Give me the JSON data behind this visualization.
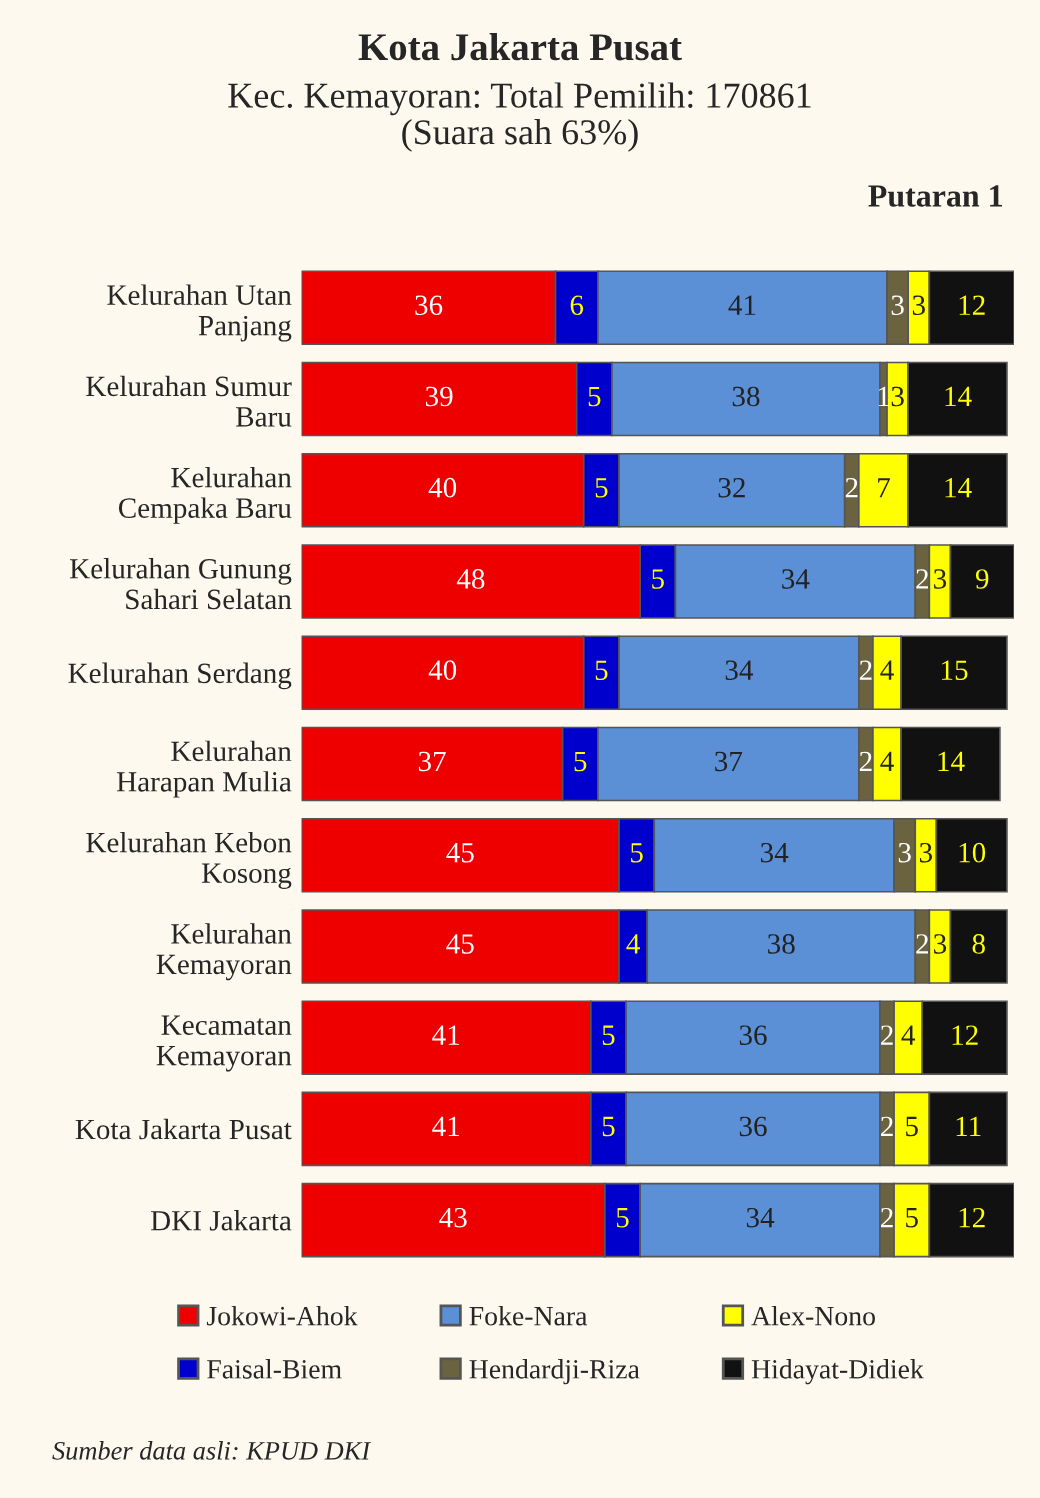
{
  "chart_data": {
    "type": "bar",
    "orientation": "horizontal",
    "stacked": true,
    "title": "Kota Jakarta Pusat",
    "subtitle": "Kec. Kemayoran: Total Pemilih: 170861\n(Suara sah 63%)",
    "annotations": [
      "Putaran 1",
      "Sumber data asli: KPUD DKI"
    ],
    "categories": [
      "Kelurahan Utan\nPanjang",
      "Kelurahan Sumur\nBaru",
      "Kelurahan\nCempaka Baru",
      "Kelurahan Gunung\nSahari Selatan",
      "Kelurahan Serdang",
      "Kelurahan\nHarapan Mulia",
      "Kelurahan Kebon\nKosong",
      "Kelurahan\nKemayoran",
      "Kecamatan\nKemayoran",
      "Kota Jakarta Pusat",
      "DKI Jakarta"
    ],
    "series": [
      {
        "name": "Jokowi-Ahok",
        "color": "#ee0000",
        "values": [
          36,
          39,
          40,
          48,
          40,
          37,
          45,
          45,
          41,
          41,
          43
        ]
      },
      {
        "name": "Faisal-Biem",
        "color": "#0000cc",
        "values": [
          6,
          5,
          5,
          5,
          5,
          5,
          5,
          4,
          5,
          5,
          5
        ]
      },
      {
        "name": "Foke-Nara",
        "color": "#5b8fd6",
        "values": [
          41,
          38,
          32,
          34,
          34,
          37,
          34,
          38,
          36,
          36,
          34
        ]
      },
      {
        "name": "Hendardji-Riza",
        "color": "#6b6340",
        "values": [
          3,
          1,
          2,
          2,
          2,
          2,
          3,
          2,
          2,
          2,
          2
        ]
      },
      {
        "name": "Alex-Nono",
        "color": "#ffff00",
        "values": [
          3,
          3,
          7,
          3,
          4,
          4,
          3,
          3,
          4,
          5,
          5
        ]
      },
      {
        "name": "Hidayat-Didiek",
        "color": "#111111",
        "values": [
          12,
          14,
          14,
          9,
          15,
          14,
          10,
          8,
          12,
          11,
          12
        ]
      }
    ],
    "xlim": [
      0,
      101
    ],
    "data_labels": true,
    "legend": "bottom",
    "grid": false,
    "tick_labels": "y"
  }
}
